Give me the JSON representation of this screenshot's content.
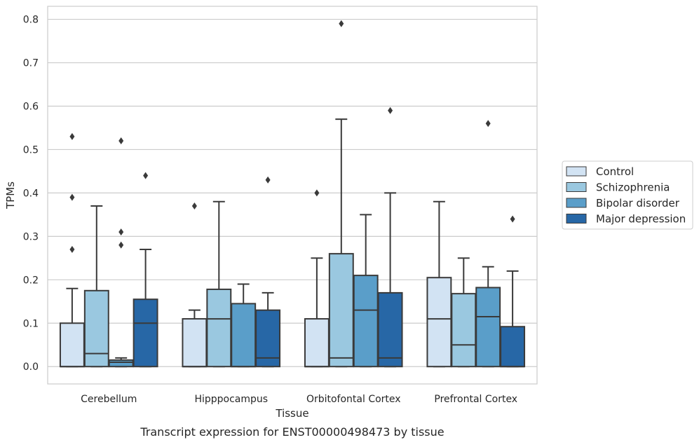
{
  "chart_data": {
    "type": "box",
    "title": "",
    "xlabel": "Tissue",
    "ylabel": "TPMs",
    "caption": "Transcript expression for ENST00000498473 by tissue",
    "ylim": [
      -0.04,
      0.83
    ],
    "yticks": [
      "0.0",
      "0.1",
      "0.2",
      "0.3",
      "0.4",
      "0.5",
      "0.6",
      "0.7",
      "0.8"
    ],
    "grid": "horizontal",
    "legend_position": "right",
    "categories": [
      "Cerebellum",
      "Hipppocampus",
      "Orbitofontal Cortex",
      "Prefrontal Cortex"
    ],
    "series": [
      {
        "name": "Control",
        "color": "#d2e3f3",
        "boxes": [
          {
            "min": 0.0,
            "q1": 0.0,
            "median": 0.0,
            "q3": 0.1,
            "max": 0.18,
            "outliers": [
              0.27,
              0.39,
              0.53
            ]
          },
          {
            "min": 0.0,
            "q1": 0.0,
            "median": 0.0,
            "q3": 0.11,
            "max": 0.13,
            "outliers": [
              0.37
            ]
          },
          {
            "min": 0.0,
            "q1": 0.0,
            "median": 0.0,
            "q3": 0.11,
            "max": 0.25,
            "outliers": [
              0.4
            ]
          },
          {
            "min": 0.0,
            "q1": 0.0,
            "median": 0.11,
            "q3": 0.205,
            "max": 0.38,
            "outliers": []
          }
        ]
      },
      {
        "name": "Schizophrenia",
        "color": "#9ac8e0",
        "boxes": [
          {
            "min": 0.0,
            "q1": 0.0,
            "median": 0.03,
            "q3": 0.175,
            "max": 0.37,
            "outliers": []
          },
          {
            "min": 0.0,
            "q1": 0.0,
            "median": 0.11,
            "q3": 0.178,
            "max": 0.38,
            "outliers": []
          },
          {
            "min": 0.0,
            "q1": 0.0,
            "median": 0.02,
            "q3": 0.26,
            "max": 0.57,
            "outliers": [
              0.79
            ]
          },
          {
            "min": 0.0,
            "q1": 0.0,
            "median": 0.05,
            "q3": 0.168,
            "max": 0.25,
            "outliers": []
          }
        ]
      },
      {
        "name": "Bipolar disorder",
        "color": "#5a9ec9",
        "boxes": [
          {
            "min": 0.0,
            "q1": 0.0,
            "median": 0.01,
            "q3": 0.015,
            "max": 0.02,
            "outliers": [
              0.28,
              0.31,
              0.52
            ]
          },
          {
            "min": 0.0,
            "q1": 0.0,
            "median": 0.0,
            "q3": 0.145,
            "max": 0.19,
            "outliers": []
          },
          {
            "min": 0.0,
            "q1": 0.0,
            "median": 0.13,
            "q3": 0.21,
            "max": 0.35,
            "outliers": []
          },
          {
            "min": 0.0,
            "q1": 0.0,
            "median": 0.115,
            "q3": 0.182,
            "max": 0.23,
            "outliers": [
              0.56
            ]
          }
        ]
      },
      {
        "name": "Major depression",
        "color": "#2767a6",
        "boxes": [
          {
            "min": 0.0,
            "q1": 0.0,
            "median": 0.1,
            "q3": 0.155,
            "max": 0.27,
            "outliers": [
              0.44
            ]
          },
          {
            "min": 0.0,
            "q1": 0.0,
            "median": 0.02,
            "q3": 0.13,
            "max": 0.17,
            "outliers": [
              0.43
            ]
          },
          {
            "min": 0.0,
            "q1": 0.0,
            "median": 0.02,
            "q3": 0.17,
            "max": 0.4,
            "outliers": [
              0.59
            ]
          },
          {
            "min": 0.0,
            "q1": 0.0,
            "median": 0.0,
            "q3": 0.092,
            "max": 0.22,
            "outliers": [
              0.34
            ]
          }
        ]
      }
    ]
  }
}
